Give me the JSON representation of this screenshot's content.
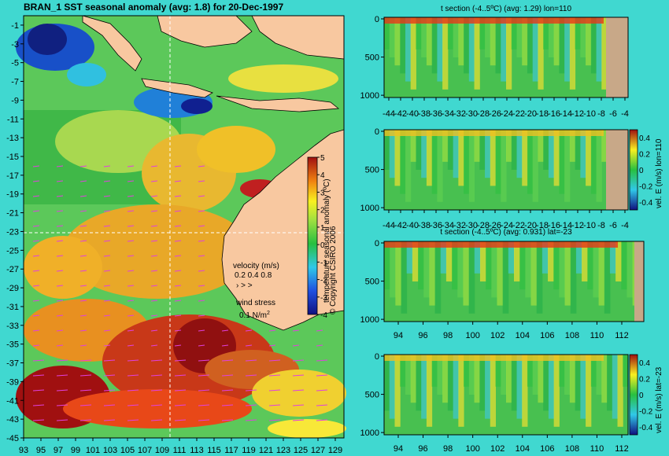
{
  "main_title": "BRAN_1 SST seasonal anomaly (avg: 1.8) for 20-Dec-1997",
  "copyright": "© Copyright CSIRO 2006",
  "map": {
    "lat_ticks": [
      -1,
      -3,
      -5,
      -7,
      -9,
      -11,
      -13,
      -15,
      -17,
      -19,
      -21,
      -23,
      -25,
      -27,
      -29,
      -31,
      -33,
      -35,
      -37,
      -39,
      -41,
      -43,
      -45
    ],
    "lon_ticks": [
      93,
      95,
      97,
      99,
      101,
      103,
      105,
      107,
      109,
      111,
      113,
      115,
      117,
      119,
      121,
      123,
      125,
      127,
      129
    ],
    "lon_tick_labels": [
      "93",
      "95",
      "97",
      "99",
      "101",
      "103",
      "105",
      "107",
      "109",
      "111",
      "113",
      "115",
      "117",
      "119",
      "121",
      "123",
      "125",
      "127",
      "129"
    ],
    "colorbar": {
      "label": "temperature seasonal anomaly (ºC)",
      "ticks": [
        5,
        4,
        3,
        2,
        1,
        0,
        -1,
        -2,
        -3,
        -4
      ]
    },
    "velocity_label": "velocity (m/s)",
    "velocity_scale": "0.2 0.4 0.8",
    "wind_label": "wind stress",
    "wind_value": "0.1 N/m",
    "wind_exponent": "2",
    "crosshair": {
      "lat": -23,
      "lon": 110
    }
  },
  "panels": [
    {
      "title": "t section (-4..5ºC) (avg: 1.29) lon=110",
      "type": "heatmap",
      "x_ticks": [
        "-44",
        "-42",
        "-40",
        "-38",
        "-36",
        "-34",
        "-32",
        "-30",
        "-28",
        "-26",
        "-24",
        "-22",
        "-20",
        "-18",
        "-16",
        "-14",
        "-12",
        "-10",
        "-8",
        "-6",
        "-4"
      ],
      "y_ticks": [
        "0",
        "500",
        "1000"
      ],
      "colorbar_label": "",
      "colorbar_ticks": []
    },
    {
      "title": "",
      "type": "heatmap",
      "x_ticks": [
        "-44",
        "-42",
        "-40",
        "-38",
        "-36",
        "-34",
        "-32",
        "-30",
        "-28",
        "-26",
        "-24",
        "-22",
        "-20",
        "-18",
        "-16",
        "-14",
        "-12",
        "-10",
        "-8",
        "-6",
        "-4"
      ],
      "y_ticks": [
        "0",
        "500",
        "1000"
      ],
      "colorbar_label": "vel. E (m/s) lon=110",
      "colorbar_ticks": [
        "0.4",
        "0.2",
        "0",
        "-0.2",
        "-0.4"
      ]
    },
    {
      "title": "t section (-4..5ºC) (avg: 0.931) lat=-23",
      "type": "heatmap",
      "x_ticks": [
        "94",
        "96",
        "98",
        "100",
        "102",
        "104",
        "106",
        "108",
        "110",
        "112"
      ],
      "y_ticks": [
        "0",
        "500",
        "1000"
      ],
      "colorbar_label": "",
      "colorbar_ticks": []
    },
    {
      "title": "",
      "type": "heatmap",
      "x_ticks": [
        "94",
        "96",
        "98",
        "100",
        "102",
        "104",
        "106",
        "108",
        "110",
        "112"
      ],
      "y_ticks": [
        "0",
        "500",
        "1000"
      ],
      "colorbar_label": "vel. E (m/s) lat=-23",
      "colorbar_ticks": [
        "0.4",
        "0.2",
        "0",
        "-0.2",
        "-0.4"
      ]
    }
  ],
  "chart_data": [
    {
      "type": "heatmap",
      "title": "BRAN_1 SST seasonal anomaly (avg: 1.8) for 20-Dec-1997",
      "xlim": [
        93,
        130
      ],
      "ylim": [
        -45,
        0
      ],
      "colorbar_range": [
        -4,
        5
      ],
      "regions": [
        {
          "name": "",
          "lon": [
            93,
            105
          ],
          "lat": [
            -45,
            -37
          ],
          "anomaly": 5
        },
        {
          "name": "",
          "lon": [
            107,
            117
          ],
          "lat": [
            -40,
            -33
          ],
          "anomaly": 4.5
        },
        {
          "name": "",
          "lon": [
            95,
            101
          ],
          "lat": [
            -4,
            -1
          ],
          "anomaly": -3.5
        },
        {
          "name": "",
          "lon": [
            106,
            113
          ],
          "lat": [
            -15,
            -9
          ],
          "anomaly": -3
        }
      ]
    },
    {
      "type": "heatmap",
      "x_range": [
        -45,
        -3
      ],
      "y_range": [
        0,
        1050
      ],
      "colorbar_range": [
        -4,
        5
      ]
    },
    {
      "type": "heatmap",
      "x_range": [
        -45,
        -3
      ],
      "y_range": [
        0,
        1050
      ],
      "colorbar_range": [
        -0.4,
        0.4
      ]
    },
    {
      "type": "heatmap",
      "x_range": [
        93,
        114
      ],
      "y_range": [
        0,
        1050
      ],
      "colorbar_range": [
        -4,
        5
      ]
    },
    {
      "type": "heatmap",
      "x_range": [
        93,
        114
      ],
      "y_range": [
        0,
        1050
      ],
      "colorbar_range": [
        -0.4,
        0.4
      ]
    }
  ]
}
